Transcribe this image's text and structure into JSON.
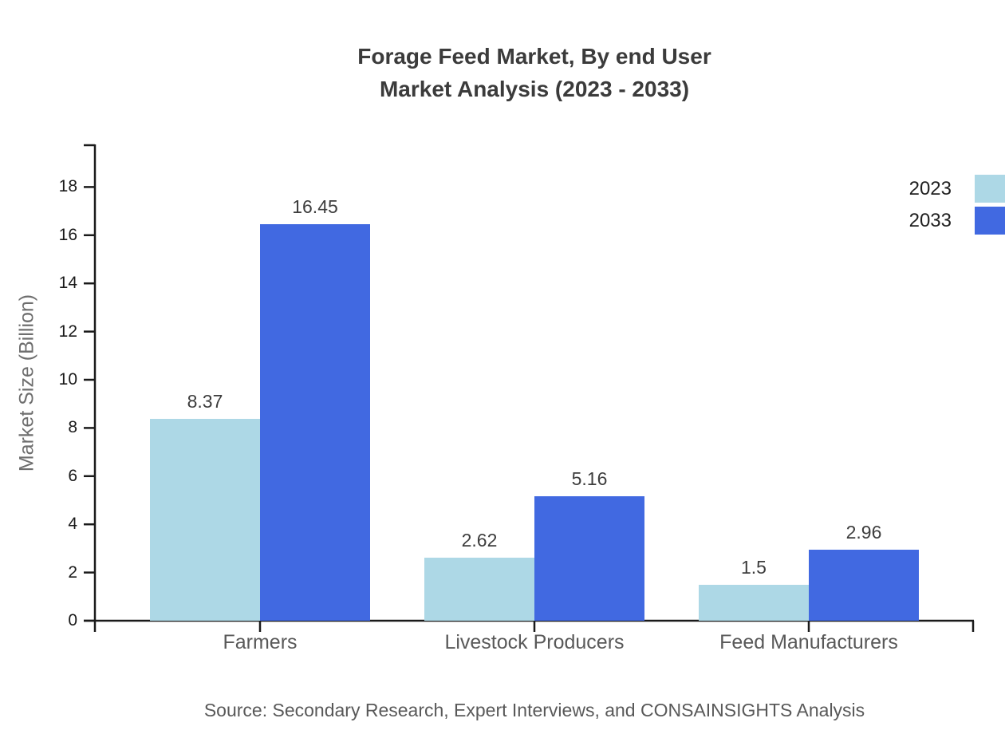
{
  "title": {
    "line1": "Forage Feed Market, By end User",
    "line2": "Market Analysis (2023 - 2033)"
  },
  "source": "Source: Secondary Research, Expert Interviews, and CONSAINSIGHTS Analysis",
  "chart_data": {
    "type": "bar",
    "categories": [
      "Farmers",
      "Livestock Producers",
      "Feed Manufacturers"
    ],
    "series": [
      {
        "name": "2023",
        "color": "#ADD8E6",
        "values": [
          8.37,
          2.62,
          1.5
        ]
      },
      {
        "name": "2033",
        "color": "#4169E1",
        "values": [
          16.45,
          5.16,
          2.96
        ]
      }
    ],
    "title": "Forage Feed Market, By end User Market Analysis (2023 - 2033)",
    "xlabel": "",
    "ylabel": "Market Size (Billion)",
    "ylim": [
      0,
      20
    ],
    "yticks": [
      0,
      2,
      4,
      6,
      8,
      10,
      12,
      14,
      16,
      18
    ],
    "grid": false,
    "legend_position": "top-right",
    "value_labels": true,
    "axis_color": "#1a1a1a"
  }
}
